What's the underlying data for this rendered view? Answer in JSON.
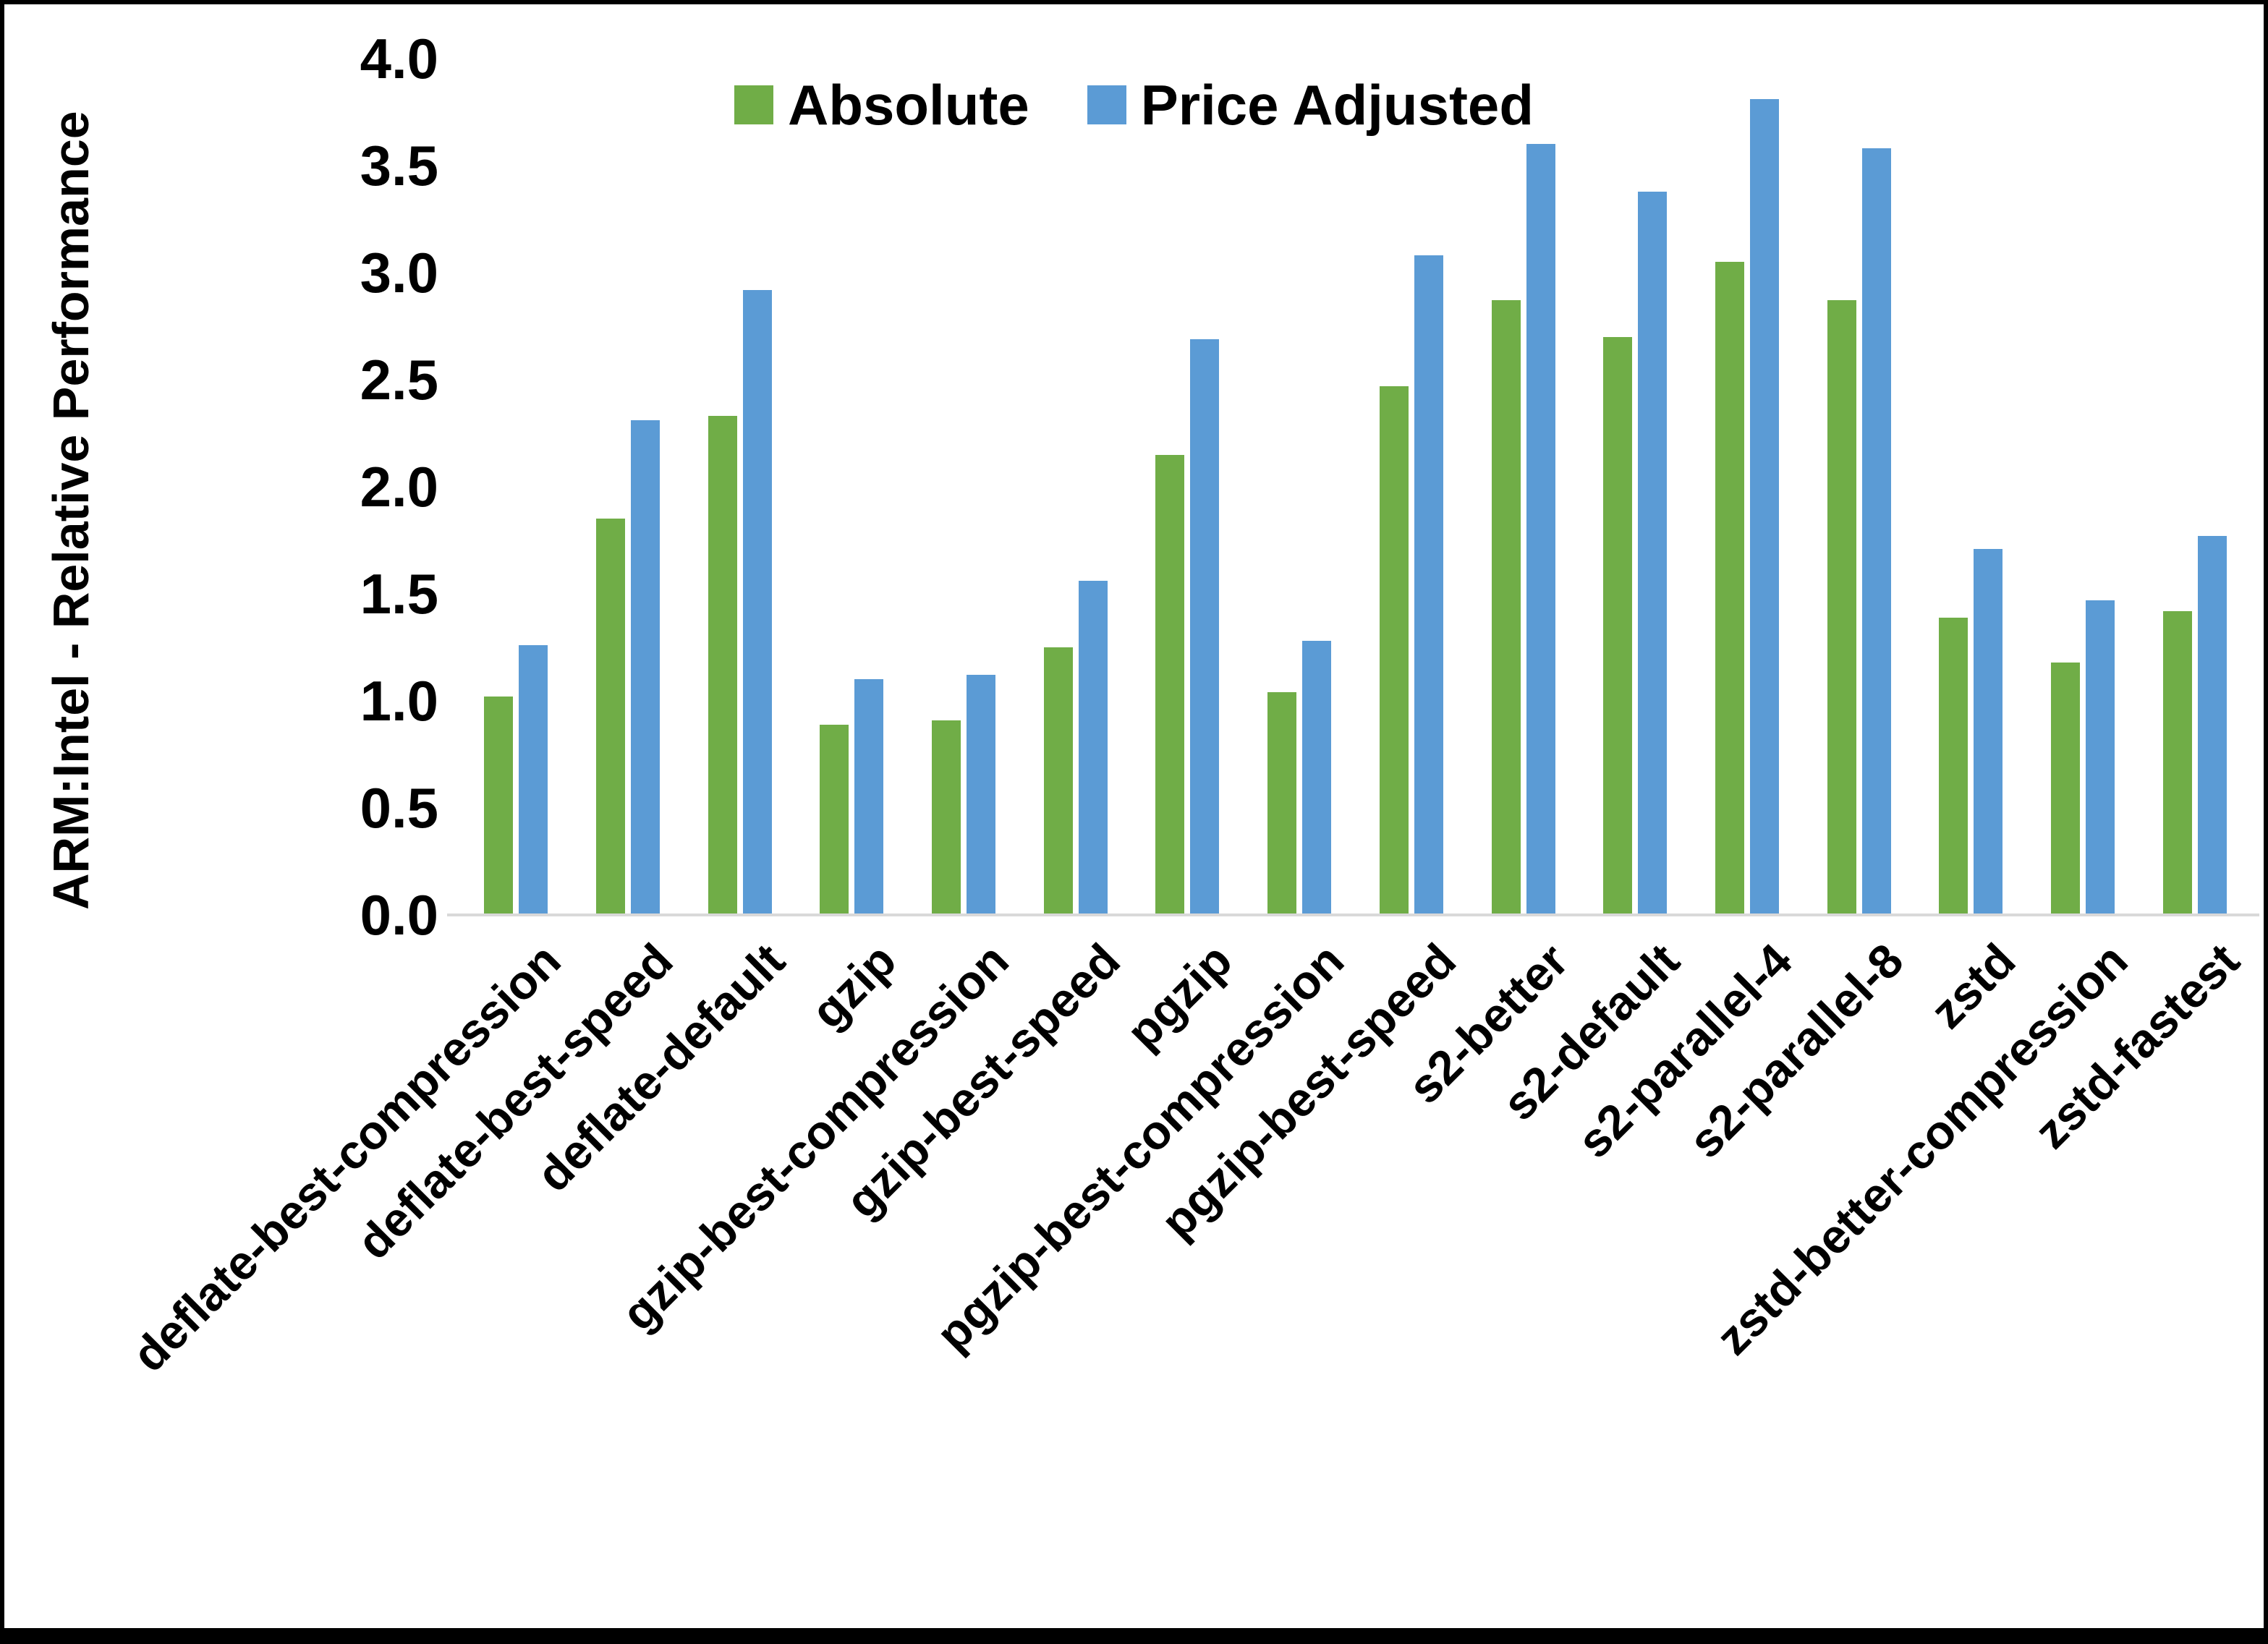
{
  "chart_data": {
    "type": "bar",
    "title": "",
    "xlabel": "",
    "ylabel": "ARM:Intel - Relative Performance",
    "ylim": [
      0.0,
      4.0
    ],
    "ytick_step": 0.5,
    "yticks": [
      "4.0",
      "3.5",
      "3.0",
      "2.5",
      "2.0",
      "1.5",
      "1.0",
      "0.5",
      "0.0"
    ],
    "grid": false,
    "legend_position": "top-center",
    "categories": [
      "deflate-best-compression",
      "deflate-best-speed",
      "deflate-default",
      "gzip",
      "gzip-best-compression",
      "gzip-best-speed",
      "pgzip",
      "pgzip-best-compression",
      "pgzip-best-speed",
      "s2-better",
      "s2-default",
      "s2-parallel-4",
      "s2-parallel-8",
      "zstd",
      "zstd-better-compression",
      "zstd-fastest"
    ],
    "series": [
      {
        "name": "Absolute",
        "color": "#70AD47",
        "values": [
          1.02,
          1.85,
          2.33,
          0.89,
          0.91,
          1.25,
          2.15,
          1.04,
          2.47,
          2.87,
          2.7,
          3.05,
          2.87,
          1.39,
          1.18,
          1.42
        ]
      },
      {
        "name": "Price Adjusted",
        "color": "#5B9BD5",
        "values": [
          1.26,
          2.31,
          2.92,
          1.1,
          1.12,
          1.56,
          2.69,
          1.28,
          3.08,
          3.6,
          3.38,
          3.81,
          3.58,
          1.71,
          1.47,
          1.77
        ]
      }
    ],
    "axis_line_color": "#d9d9d9"
  }
}
